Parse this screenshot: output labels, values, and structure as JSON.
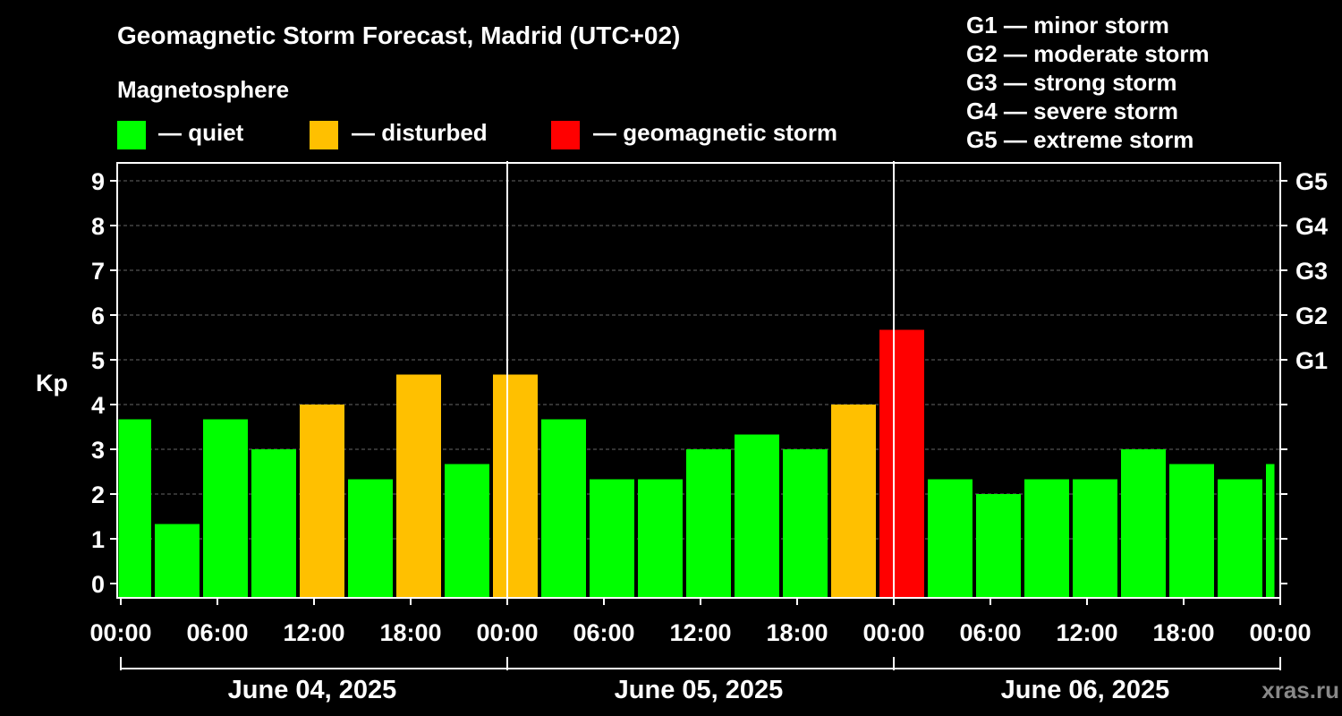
{
  "title": "Geomagnetic Storm Forecast, Madrid (UTC+02)",
  "legend": {
    "heading": "Magnetosphere",
    "items": [
      {
        "key": "quiet",
        "label": "— quiet",
        "color": "#00ff00"
      },
      {
        "key": "disturbed",
        "label": "— disturbed",
        "color": "#ffc000"
      },
      {
        "key": "storm",
        "label": "— geomagnetic storm",
        "color": "#ff0000"
      }
    ]
  },
  "g_scale": [
    {
      "level": "G1",
      "text": "G1 — minor storm"
    },
    {
      "level": "G2",
      "text": "G2 — moderate storm"
    },
    {
      "level": "G3",
      "text": "G3 — strong storm"
    },
    {
      "level": "G4",
      "text": "G4 — severe storm"
    },
    {
      "level": "G5",
      "text": "G5 — extreme storm"
    }
  ],
  "watermark": "xras.ru",
  "chart_data": {
    "type": "bar",
    "ylabel": "Kp",
    "ylim": [
      -0.3,
      9.4
    ],
    "yticks": [
      "0",
      "1",
      "2",
      "3",
      "4",
      "5",
      "6",
      "7",
      "8",
      "9"
    ],
    "right_ticks": [
      {
        "value": 5,
        "label": "G1"
      },
      {
        "value": 6,
        "label": "G2"
      },
      {
        "value": 7,
        "label": "G3"
      },
      {
        "value": 8,
        "label": "G4"
      },
      {
        "value": 9,
        "label": "G5"
      }
    ],
    "xlim_hours": [
      0,
      72
    ],
    "xtick_labels": [
      "00:00",
      "06:00",
      "12:00",
      "18:00",
      "00:00",
      "06:00",
      "12:00",
      "18:00",
      "00:00",
      "06:00",
      "12:00",
      "18:00",
      "00:00"
    ],
    "xtick_hours": [
      0,
      6,
      12,
      18,
      24,
      30,
      36,
      42,
      48,
      54,
      60,
      66,
      72
    ],
    "day_dividers_hours": [
      24,
      48
    ],
    "dates": [
      {
        "label": "June 04, 2025",
        "start": 0,
        "end": 24
      },
      {
        "label": "June 05, 2025",
        "start": 24,
        "end": 48
      },
      {
        "label": "June 06, 2025",
        "start": 48,
        "end": 72
      }
    ],
    "bar_starts_hours": [
      -1,
      2,
      5,
      8,
      11,
      14,
      17,
      20,
      23,
      26,
      29,
      32,
      35,
      38,
      41,
      44,
      47,
      50,
      53,
      56,
      59,
      62,
      65,
      68,
      71
    ],
    "values": [
      3.67,
      1.33,
      3.67,
      3.0,
      4.0,
      2.33,
      4.67,
      2.67,
      4.67,
      3.67,
      2.33,
      2.33,
      3.0,
      3.33,
      3.0,
      4.0,
      5.67,
      2.33,
      2.0,
      2.33,
      2.33,
      3.0,
      2.67,
      2.33,
      2.67
    ],
    "categories": [
      "quiet",
      "quiet",
      "quiet",
      "quiet",
      "disturbed",
      "quiet",
      "disturbed",
      "quiet",
      "disturbed",
      "quiet",
      "quiet",
      "quiet",
      "quiet",
      "quiet",
      "quiet",
      "disturbed",
      "storm",
      "quiet",
      "quiet",
      "quiet",
      "quiet",
      "quiet",
      "quiet",
      "quiet",
      "quiet"
    ],
    "colors": {
      "quiet": "#00ff00",
      "disturbed": "#ffc000",
      "storm": "#ff0000"
    }
  }
}
